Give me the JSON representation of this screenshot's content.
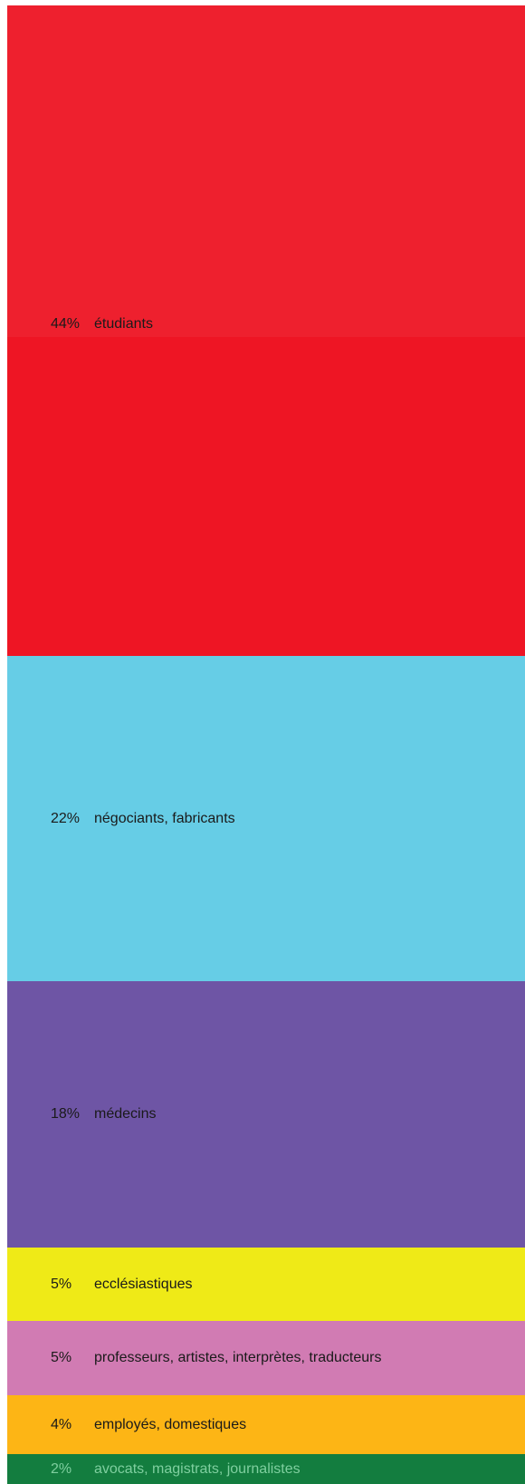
{
  "chart_data": {
    "type": "bar",
    "orientation": "stacked-vertical",
    "categories": [
      "étudiants",
      "négociants, fabricants",
      "médecins",
      "ecclésiastiques",
      "professeurs, artistes, interprètes, traducteurs",
      "employés, domestiques",
      "avocats, magistrats, journalistes"
    ],
    "values": [
      44,
      22,
      18,
      5,
      5,
      4,
      2
    ],
    "value_labels": [
      "44%",
      "22%",
      "18%",
      "5%",
      "5%",
      "4%",
      "2%"
    ],
    "colors": [
      "#ee202e",
      "#66cde6",
      "#6e55a5",
      "#efea17",
      "#d17bb3",
      "#fdb515",
      "#137d3f"
    ],
    "secondary_colors": [
      "#ee1524",
      null,
      null,
      null,
      null,
      null,
      null
    ],
    "title": "",
    "xlabel": "",
    "ylabel": "",
    "legend": "none",
    "grid": false
  }
}
